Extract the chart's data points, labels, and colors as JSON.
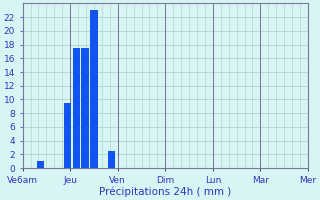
{
  "bar_values": [
    1.0,
    9.5,
    17.5,
    17.5,
    23.0,
    2.5
  ],
  "bar_color": "#1155ee",
  "bar_width": 0.8,
  "background_color": "#d8f5f5",
  "grid_color": "#aacccc",
  "axis_line_color": "#777799",
  "tick_label_color": "#3333bb",
  "xlabel": "Précipitations 24h ( mm )",
  "xlabel_color": "#3333bb",
  "xlabel_fontsize": 7.5,
  "yticks": [
    0,
    2,
    4,
    6,
    8,
    10,
    12,
    14,
    16,
    18,
    20,
    22
  ],
  "ylim": [
    0,
    24
  ],
  "tick_fontsize": 6.5,
  "xlim_min": 0,
  "xlim_max": 48,
  "day_labels": [
    "Ve6am",
    "Jeu",
    "Ven",
    "Dim",
    "Lun",
    "Mar",
    "Mer"
  ],
  "minor_grid_x_step": 1,
  "minor_grid_y_step": 2
}
